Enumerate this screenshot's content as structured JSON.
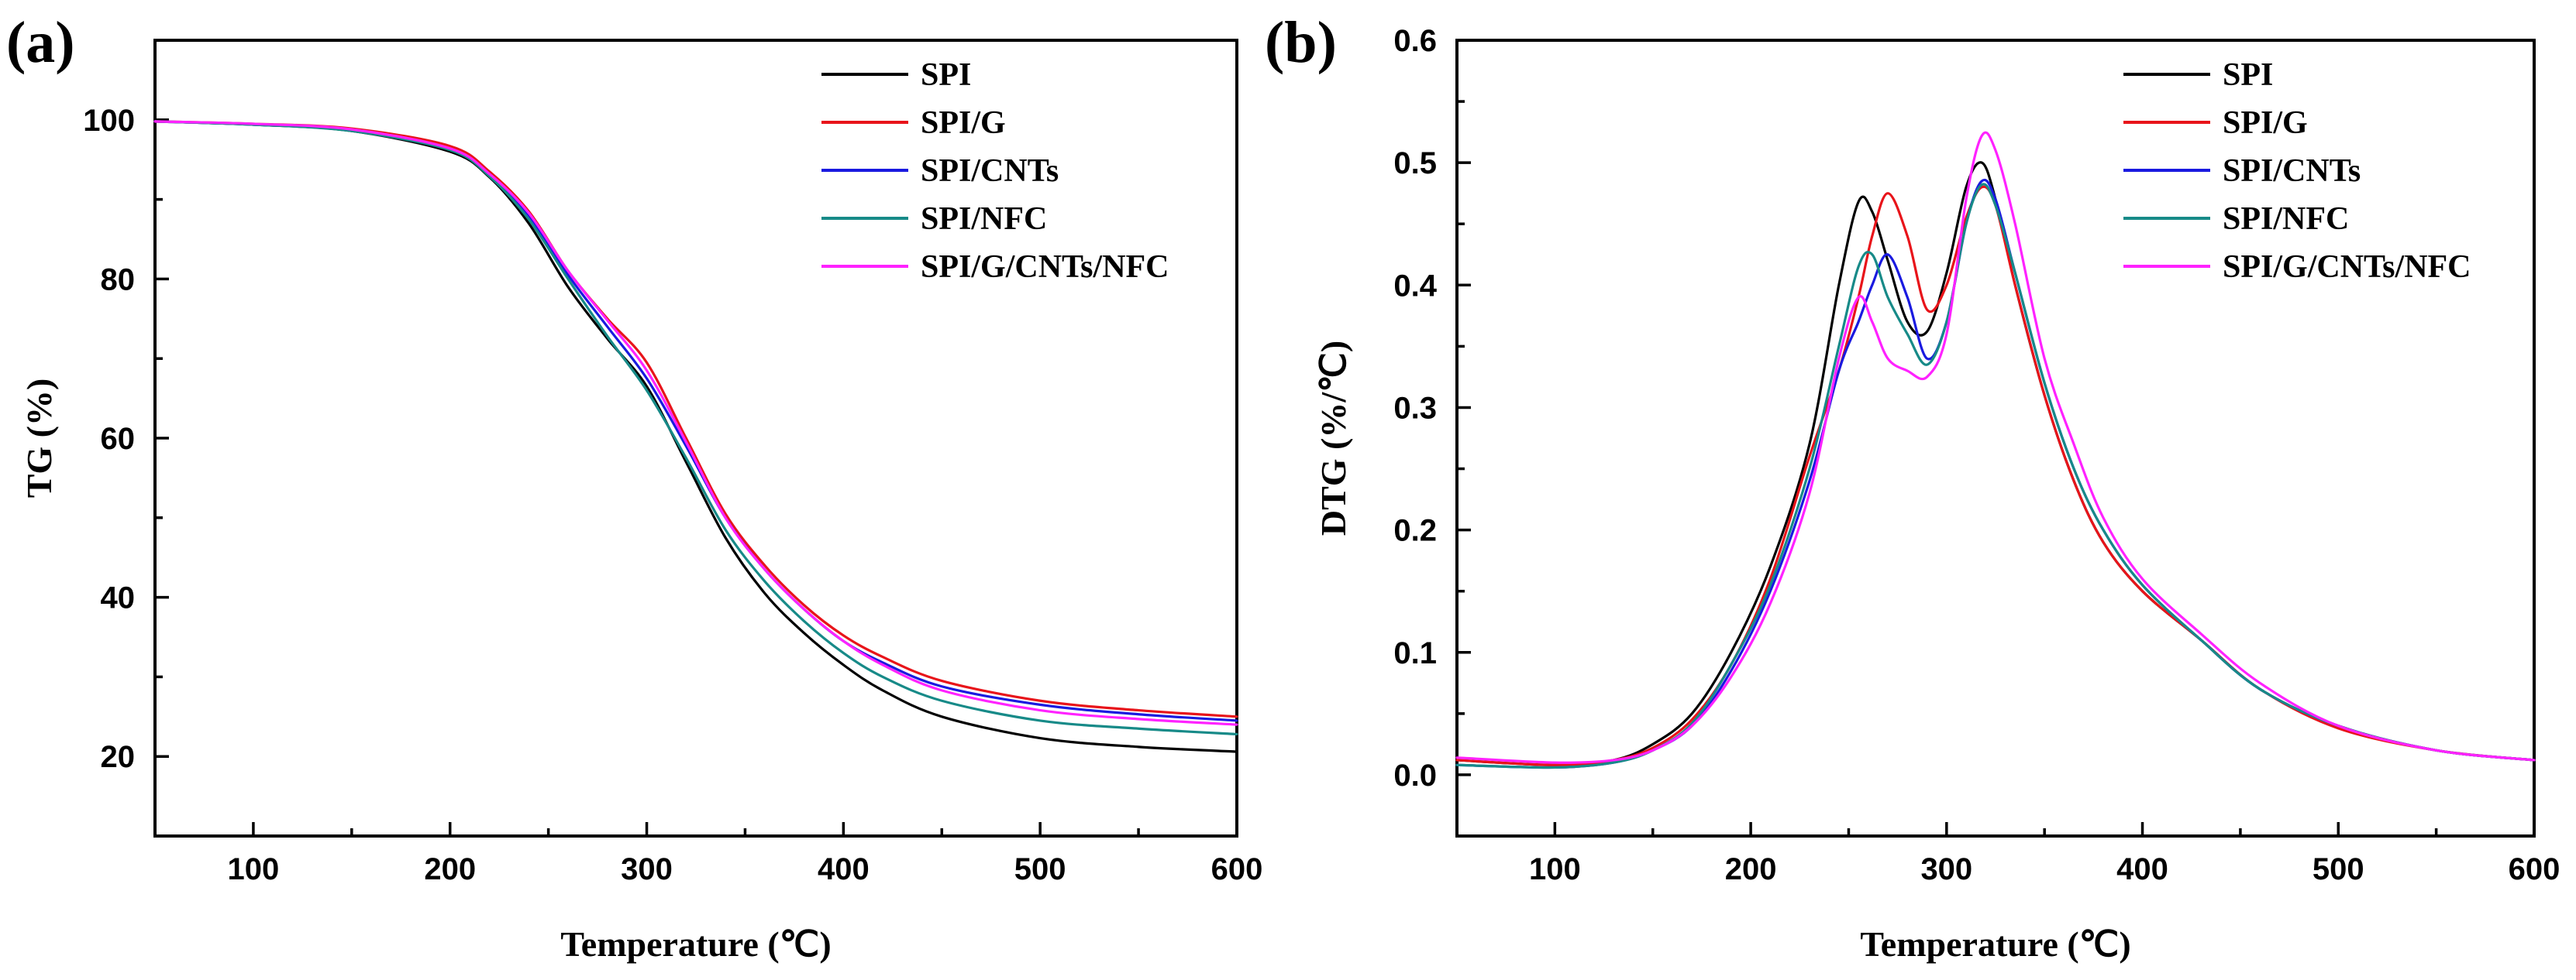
{
  "colors": {
    "SPI": "#000000",
    "SPI/G": "#e8141a",
    "SPI/CNTs": "#1a1ae0",
    "SPI/NFC": "#178a88",
    "SPI/G/CNTs/NFC": "#ff22ff"
  },
  "chart_data": [
    {
      "type": "line",
      "panel_label": "(a)",
      "title": "",
      "xlabel": "Temperature (℃)",
      "ylabel": "TG (%)",
      "xlim": [
        50,
        600
      ],
      "ylim": [
        10,
        110
      ],
      "xticks": [
        100,
        200,
        300,
        400,
        500,
        600
      ],
      "yticks": [
        20,
        40,
        60,
        80,
        100
      ],
      "legend_position": "top-right",
      "series": [
        {
          "name": "SPI",
          "x": [
            50,
            100,
            150,
            200,
            220,
            240,
            260,
            280,
            300,
            320,
            340,
            360,
            380,
            400,
            420,
            450,
            500,
            550,
            600
          ],
          "values": [
            99.8,
            99.4,
            98.6,
            96.0,
            92.8,
            87.0,
            79.0,
            72.5,
            66.5,
            57.0,
            47.5,
            40.5,
            35.5,
            31.5,
            28.3,
            25.0,
            22.3,
            21.2,
            20.6
          ]
        },
        {
          "name": "SPI/G",
          "x": [
            50,
            100,
            150,
            200,
            220,
            240,
            260,
            280,
            300,
            320,
            340,
            360,
            380,
            400,
            420,
            450,
            500,
            550,
            600
          ],
          "values": [
            99.8,
            99.5,
            98.9,
            96.7,
            93.5,
            88.5,
            81.0,
            75.0,
            69.5,
            60.0,
            50.5,
            44.0,
            39.0,
            35.2,
            32.5,
            29.5,
            27.0,
            25.8,
            25.0
          ]
        },
        {
          "name": "SPI/CNTs",
          "x": [
            50,
            100,
            150,
            200,
            220,
            240,
            260,
            280,
            300,
            320,
            340,
            360,
            380,
            400,
            420,
            450,
            500,
            550,
            600
          ],
          "values": [
            99.8,
            99.4,
            98.7,
            96.3,
            93.2,
            88.0,
            80.5,
            74.0,
            67.5,
            59.0,
            50.0,
            43.5,
            38.5,
            34.5,
            31.8,
            28.8,
            26.5,
            25.3,
            24.5
          ]
        },
        {
          "name": "SPI/NFC",
          "x": [
            50,
            100,
            150,
            200,
            220,
            240,
            260,
            280,
            300,
            320,
            340,
            360,
            380,
            400,
            420,
            450,
            500,
            550,
            600
          ],
          "values": [
            99.8,
            99.4,
            98.6,
            96.2,
            92.9,
            87.5,
            80.0,
            72.8,
            66.0,
            57.5,
            48.5,
            42.0,
            37.0,
            33.0,
            30.0,
            27.0,
            24.5,
            23.5,
            22.8
          ]
        },
        {
          "name": "SPI/G/CNTs/NFC",
          "x": [
            50,
            100,
            150,
            200,
            220,
            240,
            260,
            280,
            300,
            320,
            340,
            360,
            380,
            400,
            420,
            450,
            500,
            550,
            600
          ],
          "values": [
            99.8,
            99.5,
            98.8,
            96.4,
            93.2,
            88.3,
            81.0,
            74.8,
            68.5,
            59.5,
            50.0,
            43.5,
            38.5,
            34.5,
            31.5,
            28.3,
            25.8,
            24.7,
            24.0
          ]
        }
      ]
    },
    {
      "type": "line",
      "panel_label": "(b)",
      "title": "",
      "xlabel": "Temperature (℃)",
      "ylabel": "DTG (%/℃)",
      "xlim": [
        50,
        600
      ],
      "ylim": [
        -0.05,
        0.6
      ],
      "xticks": [
        100,
        200,
        300,
        400,
        500,
        600
      ],
      "yticks": [
        0.0,
        0.1,
        0.2,
        0.3,
        0.4,
        0.5,
        0.6
      ],
      "yticklabels": [
        "0.0",
        "0.1",
        "0.2",
        "0.3",
        "0.4",
        "0.5",
        "0.6"
      ],
      "legend_position": "top-right",
      "series": [
        {
          "name": "SPI",
          "x": [
            50,
            100,
            130,
            150,
            170,
            190,
            210,
            230,
            245,
            255,
            262,
            270,
            280,
            290,
            300,
            310,
            318,
            325,
            335,
            350,
            365,
            380,
            400,
            430,
            460,
            500,
            550,
            600
          ],
          "values": [
            0.012,
            0.008,
            0.012,
            0.025,
            0.05,
            0.1,
            0.17,
            0.27,
            0.4,
            0.468,
            0.46,
            0.42,
            0.37,
            0.362,
            0.41,
            0.48,
            0.5,
            0.47,
            0.4,
            0.31,
            0.24,
            0.19,
            0.15,
            0.11,
            0.07,
            0.04,
            0.02,
            0.012
          ]
        },
        {
          "name": "SPI/G",
          "x": [
            50,
            100,
            130,
            150,
            170,
            190,
            210,
            230,
            245,
            255,
            262,
            270,
            280,
            290,
            300,
            310,
            318,
            325,
            335,
            350,
            365,
            380,
            400,
            430,
            460,
            500,
            550,
            600
          ],
          "values": [
            0.012,
            0.008,
            0.012,
            0.022,
            0.045,
            0.09,
            0.16,
            0.26,
            0.33,
            0.39,
            0.44,
            0.475,
            0.44,
            0.38,
            0.4,
            0.455,
            0.48,
            0.465,
            0.4,
            0.31,
            0.24,
            0.19,
            0.15,
            0.11,
            0.07,
            0.038,
            0.02,
            0.012
          ]
        },
        {
          "name": "SPI/CNTs",
          "x": [
            50,
            100,
            130,
            150,
            170,
            190,
            210,
            230,
            245,
            255,
            262,
            270,
            280,
            290,
            300,
            310,
            318,
            325,
            335,
            350,
            365,
            380,
            400,
            430,
            460,
            500,
            550,
            600
          ],
          "values": [
            0.008,
            0.006,
            0.01,
            0.02,
            0.04,
            0.085,
            0.15,
            0.24,
            0.33,
            0.37,
            0.4,
            0.425,
            0.39,
            0.34,
            0.37,
            0.45,
            0.485,
            0.47,
            0.41,
            0.32,
            0.25,
            0.2,
            0.155,
            0.11,
            0.07,
            0.04,
            0.02,
            0.012
          ]
        },
        {
          "name": "SPI/NFC",
          "x": [
            50,
            100,
            130,
            150,
            170,
            190,
            210,
            230,
            245,
            255,
            262,
            270,
            280,
            290,
            300,
            310,
            318,
            325,
            335,
            350,
            365,
            380,
            400,
            430,
            460,
            500,
            550,
            600
          ],
          "values": [
            0.008,
            0.006,
            0.01,
            0.02,
            0.042,
            0.09,
            0.155,
            0.25,
            0.35,
            0.415,
            0.425,
            0.39,
            0.36,
            0.335,
            0.37,
            0.45,
            0.482,
            0.465,
            0.41,
            0.32,
            0.25,
            0.2,
            0.155,
            0.11,
            0.07,
            0.04,
            0.02,
            0.012
          ]
        },
        {
          "name": "SPI/G/CNTs/NFC",
          "x": [
            50,
            100,
            130,
            150,
            170,
            190,
            210,
            230,
            245,
            255,
            262,
            270,
            280,
            290,
            300,
            310,
            318,
            325,
            335,
            350,
            365,
            380,
            400,
            430,
            460,
            500,
            550,
            600
          ],
          "values": [
            0.014,
            0.01,
            0.012,
            0.02,
            0.04,
            0.08,
            0.14,
            0.23,
            0.34,
            0.39,
            0.37,
            0.34,
            0.33,
            0.325,
            0.36,
            0.47,
            0.522,
            0.51,
            0.45,
            0.34,
            0.27,
            0.21,
            0.16,
            0.115,
            0.075,
            0.04,
            0.02,
            0.012
          ]
        }
      ]
    }
  ]
}
